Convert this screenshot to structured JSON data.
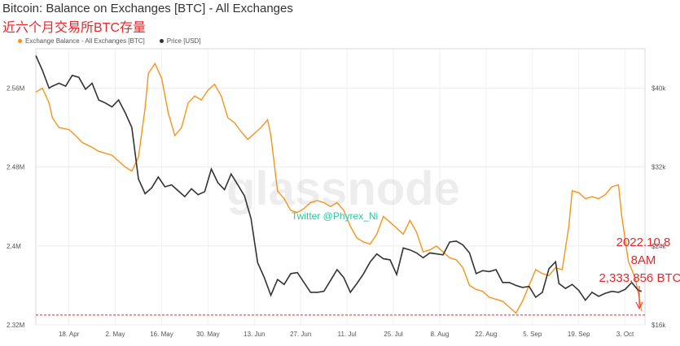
{
  "header": {
    "title": "Bitcoin: Balance on Exchanges [BTC] - All Exchanges",
    "subtitle": "近六个月交易所BTC存量"
  },
  "legend": {
    "items": [
      {
        "label": "Exchange Balance - All Exchanges [BTC]",
        "color": "#f7931a"
      },
      {
        "label": "Price [USD]",
        "color": "#333333"
      }
    ]
  },
  "watermark": "glassnode",
  "twitter_tag": "Twitter @Phyrex_Ni",
  "annotation": {
    "lines": [
      "2022.10.8",
      "8AM",
      "2,333,856 BTC"
    ],
    "color": "#e8272b"
  },
  "chart_data": {
    "type": "line",
    "title": "Bitcoin: Balance on Exchanges [BTC] - All Exchanges",
    "x_ticks": [
      "18. Apr",
      "2. May",
      "16. May",
      "30. May",
      "13. Jun",
      "27. Jun",
      "11. Jul",
      "25. Jul",
      "8. Aug",
      "22. Aug",
      "5. Sep",
      "19. Sep",
      "3. Oct"
    ],
    "y_left_ticks": [
      "2.32M",
      "2.4M",
      "2.48M",
      "2.56M"
    ],
    "y_right_ticks": [
      "$16k",
      "$24k",
      "$32k",
      "$40k"
    ],
    "y_left_range": [
      2320000,
      2600000
    ],
    "y_right_range": [
      16000,
      44000
    ],
    "x_range": [
      "2022-04-08",
      "2022-10-09"
    ],
    "grid": true,
    "reference_line": {
      "axis": "left",
      "value": 2330000,
      "style": "dashed",
      "color": "#e8272b"
    },
    "series": [
      {
        "name": "Exchange Balance - All Exchanges [BTC]",
        "axis": "left",
        "color": "#f7931a",
        "points": [
          [
            "2022-04-08",
            2556000
          ],
          [
            "2022-04-10",
            2560000
          ],
          [
            "2022-04-12",
            2545000
          ],
          [
            "2022-04-13",
            2530000
          ],
          [
            "2022-04-15",
            2520000
          ],
          [
            "2022-04-18",
            2518000
          ],
          [
            "2022-04-20",
            2512000
          ],
          [
            "2022-04-22",
            2505000
          ],
          [
            "2022-04-25",
            2500000
          ],
          [
            "2022-04-27",
            2496000
          ],
          [
            "2022-04-29",
            2494000
          ],
          [
            "2022-05-01",
            2492000
          ],
          [
            "2022-05-03",
            2486000
          ],
          [
            "2022-05-05",
            2480000
          ],
          [
            "2022-05-07",
            2476000
          ],
          [
            "2022-05-09",
            2490000
          ],
          [
            "2022-05-11",
            2540000
          ],
          [
            "2022-05-12",
            2575000
          ],
          [
            "2022-05-14",
            2585000
          ],
          [
            "2022-05-16",
            2570000
          ],
          [
            "2022-05-18",
            2535000
          ],
          [
            "2022-05-20",
            2512000
          ],
          [
            "2022-05-22",
            2520000
          ],
          [
            "2022-05-24",
            2545000
          ],
          [
            "2022-05-26",
            2552000
          ],
          [
            "2022-05-28",
            2548000
          ],
          [
            "2022-05-30",
            2558000
          ],
          [
            "2022-06-01",
            2564000
          ],
          [
            "2022-06-03",
            2552000
          ],
          [
            "2022-06-05",
            2530000
          ],
          [
            "2022-06-07",
            2525000
          ],
          [
            "2022-06-09",
            2516000
          ],
          [
            "2022-06-11",
            2508000
          ],
          [
            "2022-06-13",
            2514000
          ],
          [
            "2022-06-15",
            2520000
          ],
          [
            "2022-06-17",
            2528000
          ],
          [
            "2022-06-18",
            2512000
          ],
          [
            "2022-06-20",
            2456000
          ],
          [
            "2022-06-22",
            2448000
          ],
          [
            "2022-06-24",
            2436000
          ],
          [
            "2022-06-26",
            2434000
          ],
          [
            "2022-06-28",
            2438000
          ],
          [
            "2022-06-30",
            2444000
          ],
          [
            "2022-07-02",
            2446000
          ],
          [
            "2022-07-04",
            2444000
          ],
          [
            "2022-07-06",
            2440000
          ],
          [
            "2022-07-08",
            2444000
          ],
          [
            "2022-07-10",
            2436000
          ],
          [
            "2022-07-12",
            2420000
          ],
          [
            "2022-07-14",
            2408000
          ],
          [
            "2022-07-16",
            2404000
          ],
          [
            "2022-07-18",
            2402000
          ],
          [
            "2022-07-20",
            2412000
          ],
          [
            "2022-07-22",
            2430000
          ],
          [
            "2022-07-24",
            2424000
          ],
          [
            "2022-07-26",
            2418000
          ],
          [
            "2022-07-28",
            2412000
          ],
          [
            "2022-07-30",
            2426000
          ],
          [
            "2022-08-01",
            2414000
          ],
          [
            "2022-08-03",
            2394000
          ],
          [
            "2022-08-05",
            2396000
          ],
          [
            "2022-08-07",
            2400000
          ],
          [
            "2022-08-09",
            2394000
          ],
          [
            "2022-08-11",
            2388000
          ],
          [
            "2022-08-13",
            2386000
          ],
          [
            "2022-08-15",
            2378000
          ],
          [
            "2022-08-17",
            2360000
          ],
          [
            "2022-08-19",
            2356000
          ],
          [
            "2022-08-21",
            2354000
          ],
          [
            "2022-08-23",
            2348000
          ],
          [
            "2022-08-25",
            2346000
          ],
          [
            "2022-08-27",
            2344000
          ],
          [
            "2022-08-29",
            2338000
          ],
          [
            "2022-08-31",
            2332000
          ],
          [
            "2022-09-02",
            2344000
          ],
          [
            "2022-09-04",
            2360000
          ],
          [
            "2022-09-06",
            2376000
          ],
          [
            "2022-09-08",
            2372000
          ],
          [
            "2022-09-10",
            2370000
          ],
          [
            "2022-09-12",
            2378000
          ],
          [
            "2022-09-14",
            2376000
          ],
          [
            "2022-09-16",
            2420000
          ],
          [
            "2022-09-17",
            2456000
          ],
          [
            "2022-09-19",
            2454000
          ],
          [
            "2022-09-21",
            2448000
          ],
          [
            "2022-09-23",
            2450000
          ],
          [
            "2022-09-25",
            2448000
          ],
          [
            "2022-09-27",
            2452000
          ],
          [
            "2022-09-29",
            2460000
          ],
          [
            "2022-10-01",
            2462000
          ],
          [
            "2022-10-02",
            2430000
          ],
          [
            "2022-10-04",
            2384000
          ],
          [
            "2022-10-06",
            2368000
          ],
          [
            "2022-10-07",
            2352000
          ],
          [
            "2022-10-08",
            2333856
          ]
        ]
      },
      {
        "name": "Price [USD]",
        "axis": "right",
        "color": "#333333",
        "points": [
          [
            "2022-04-08",
            43300
          ],
          [
            "2022-04-10",
            41800
          ],
          [
            "2022-04-12",
            40000
          ],
          [
            "2022-04-13",
            40200
          ],
          [
            "2022-04-15",
            40500
          ],
          [
            "2022-04-17",
            40200
          ],
          [
            "2022-04-19",
            41300
          ],
          [
            "2022-04-21",
            41100
          ],
          [
            "2022-04-23",
            39900
          ],
          [
            "2022-04-25",
            40500
          ],
          [
            "2022-04-27",
            38800
          ],
          [
            "2022-04-29",
            38500
          ],
          [
            "2022-05-01",
            38100
          ],
          [
            "2022-05-03",
            38800
          ],
          [
            "2022-05-05",
            37500
          ],
          [
            "2022-05-07",
            36000
          ],
          [
            "2022-05-09",
            30800
          ],
          [
            "2022-05-11",
            29300
          ],
          [
            "2022-05-13",
            29900
          ],
          [
            "2022-05-15",
            31000
          ],
          [
            "2022-05-17",
            30000
          ],
          [
            "2022-05-19",
            30200
          ],
          [
            "2022-05-21",
            29600
          ],
          [
            "2022-05-23",
            29000
          ],
          [
            "2022-05-25",
            29800
          ],
          [
            "2022-05-27",
            29200
          ],
          [
            "2022-05-29",
            29500
          ],
          [
            "2022-05-31",
            31800
          ],
          [
            "2022-06-02",
            30400
          ],
          [
            "2022-06-04",
            29700
          ],
          [
            "2022-06-06",
            31300
          ],
          [
            "2022-06-08",
            30200
          ],
          [
            "2022-06-10",
            29100
          ],
          [
            "2022-06-12",
            26800
          ],
          [
            "2022-06-14",
            22300
          ],
          [
            "2022-06-16",
            20800
          ],
          [
            "2022-06-18",
            19000
          ],
          [
            "2022-06-20",
            20600
          ],
          [
            "2022-06-22",
            20100
          ],
          [
            "2022-06-24",
            21200
          ],
          [
            "2022-06-26",
            21300
          ],
          [
            "2022-06-28",
            20300
          ],
          [
            "2022-06-30",
            19300
          ],
          [
            "2022-07-02",
            19300
          ],
          [
            "2022-07-04",
            19400
          ],
          [
            "2022-07-06",
            20500
          ],
          [
            "2022-07-08",
            21600
          ],
          [
            "2022-07-10",
            20800
          ],
          [
            "2022-07-12",
            19300
          ],
          [
            "2022-07-14",
            20200
          ],
          [
            "2022-07-16",
            21200
          ],
          [
            "2022-07-18",
            22400
          ],
          [
            "2022-07-20",
            23200
          ],
          [
            "2022-07-22",
            22700
          ],
          [
            "2022-07-24",
            22600
          ],
          [
            "2022-07-26",
            21100
          ],
          [
            "2022-07-28",
            23800
          ],
          [
            "2022-07-30",
            23600
          ],
          [
            "2022-08-01",
            23300
          ],
          [
            "2022-08-03",
            22800
          ],
          [
            "2022-08-05",
            23300
          ],
          [
            "2022-08-07",
            23200
          ],
          [
            "2022-08-09",
            23100
          ],
          [
            "2022-08-11",
            24400
          ],
          [
            "2022-08-13",
            24500
          ],
          [
            "2022-08-15",
            24100
          ],
          [
            "2022-08-17",
            23300
          ],
          [
            "2022-08-19",
            21200
          ],
          [
            "2022-08-21",
            21500
          ],
          [
            "2022-08-23",
            21400
          ],
          [
            "2022-08-25",
            21600
          ],
          [
            "2022-08-27",
            20300
          ],
          [
            "2022-08-29",
            20300
          ],
          [
            "2022-08-31",
            20000
          ],
          [
            "2022-09-02",
            19800
          ],
          [
            "2022-09-04",
            19900
          ],
          [
            "2022-09-06",
            18800
          ],
          [
            "2022-09-08",
            19300
          ],
          [
            "2022-09-10",
            21700
          ],
          [
            "2022-09-12",
            22400
          ],
          [
            "2022-09-13",
            20200
          ],
          [
            "2022-09-15",
            19700
          ],
          [
            "2022-09-17",
            20100
          ],
          [
            "2022-09-19",
            19500
          ],
          [
            "2022-09-21",
            18500
          ],
          [
            "2022-09-23",
            19300
          ],
          [
            "2022-09-25",
            18900
          ],
          [
            "2022-09-27",
            19200
          ],
          [
            "2022-09-29",
            19400
          ],
          [
            "2022-10-01",
            19300
          ],
          [
            "2022-10-03",
            19600
          ],
          [
            "2022-10-05",
            20300
          ],
          [
            "2022-10-07",
            19500
          ],
          [
            "2022-10-08",
            19400
          ]
        ]
      }
    ]
  }
}
